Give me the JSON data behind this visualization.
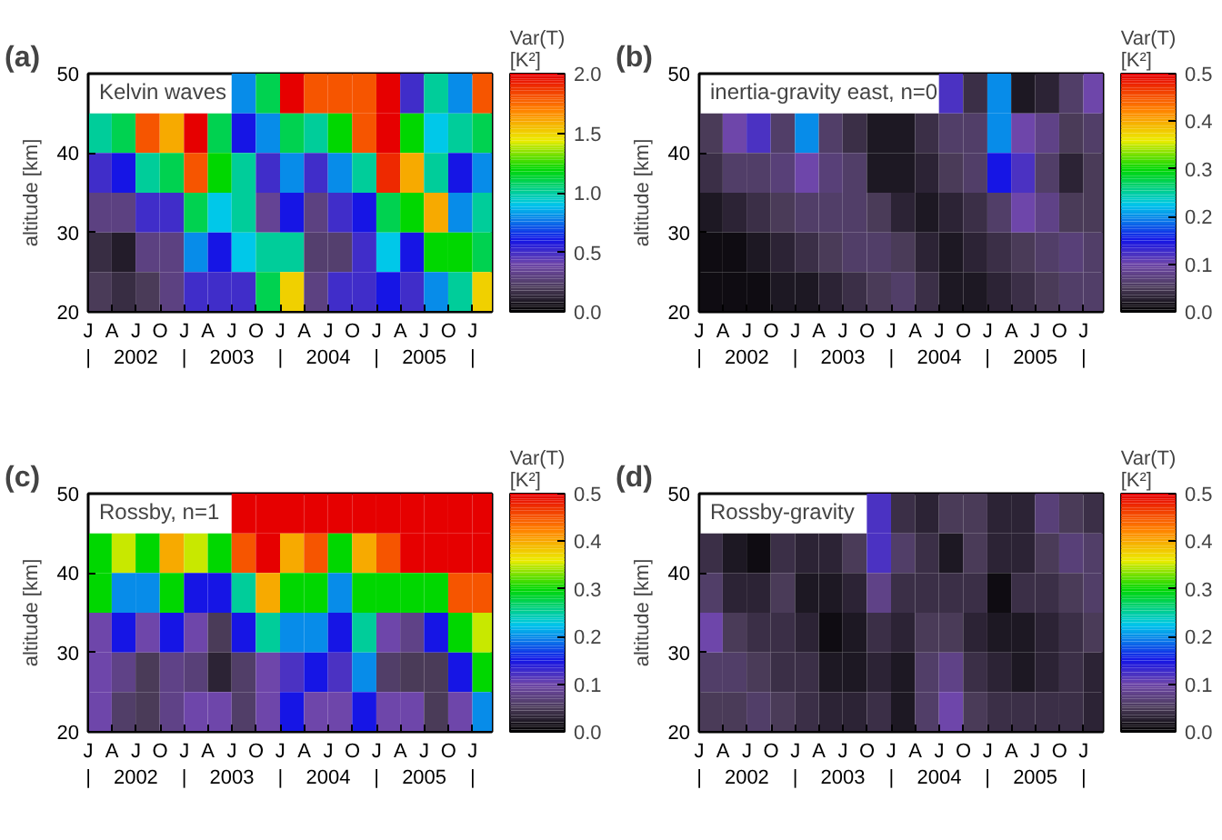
{
  "chart_data": [
    {
      "type": "heatmap",
      "title": "Kelvin waves",
      "annotations": [
        "(a)"
      ],
      "ylabel": "altitude [km]",
      "clabel": "Var(T) [K²]",
      "clim": [
        0,
        2
      ],
      "cticks": [
        {
          "value": 0,
          "label": "0.0"
        },
        0.5,
        {
          "value": 1,
          "label": "1.0"
        },
        1.5,
        {
          "value": 2,
          "label": "2.0"
        }
      ],
      "x": [
        "2002-02-15",
        "2002-05-15",
        "2002-08-15",
        "2002-11-15",
        "2003-02-15",
        "2003-05-15",
        "2003-08-15",
        "2003-11-15",
        "2004-02-15",
        "2004-05-15",
        "2004-08-15",
        "2004-11-15",
        "2005-02-15",
        "2005-05-15",
        "2005-08-15",
        "2005-11-15",
        "2006-02-15"
      ],
      "xlim": [
        "2002-01-01",
        "2006-03-15"
      ],
      "xticks": [
        {
          "value": "2002-01-01",
          "label": "J\n|"
        },
        {
          "value": "2002-04-01",
          "label": "A"
        },
        {
          "value": "2002-07-01",
          "label": "J\n2002"
        },
        {
          "value": "2002-10-01",
          "label": "O"
        },
        {
          "value": "2003-01-01",
          "label": "J\n|"
        },
        {
          "value": "2003-04-01",
          "label": "A"
        },
        {
          "value": "2003-07-01",
          "label": "J\n2003"
        },
        {
          "value": "2003-10-01",
          "label": "O"
        },
        {
          "value": "2004-01-01",
          "label": "J\n|"
        },
        {
          "value": "2004-04-01",
          "label": "A"
        },
        {
          "value": "2004-07-01",
          "label": "J\n2004"
        },
        {
          "value": "2004-10-01",
          "label": "O"
        },
        {
          "value": "2005-01-01",
          "label": "J\n|"
        },
        {
          "value": "2005-04-01",
          "label": "A"
        },
        {
          "value": "2005-07-01",
          "label": "J\n2005"
        },
        {
          "value": "2005-10-01",
          "label": "O"
        },
        {
          "value": "2006-01-01",
          "label": "J\n|"
        }
      ],
      "ylim": [
        20,
        50
      ],
      "yticks": [
        20,
        30,
        40,
        50
      ],
      "cells": [
        [
          null,
          null,
          null,
          null,
          null,
          null,
          0.8,
          1.1,
          2.0,
          1.8,
          1.8,
          1.8,
          2.0,
          0.5,
          1.0,
          0.8,
          1.8
        ],
        [
          1.0,
          1.1,
          1.8,
          1.6,
          2.0,
          1.1,
          0.6,
          0.8,
          1.1,
          1.0,
          1.2,
          1.8,
          2.0,
          1.2,
          0.9,
          1.0,
          1.1
        ],
        [
          0.5,
          0.6,
          1.0,
          1.1,
          1.8,
          1.2,
          1.0,
          0.5,
          0.8,
          0.5,
          0.8,
          1.0,
          1.9,
          1.6,
          1.0,
          0.6,
          0.8
        ],
        [
          0.3,
          0.3,
          0.5,
          0.5,
          1.1,
          0.9,
          1.0,
          0.35,
          0.6,
          0.3,
          0.5,
          0.6,
          1.1,
          1.2,
          1.6,
          0.8,
          1.0
        ],
        [
          0.15,
          0.1,
          0.3,
          0.3,
          0.8,
          0.6,
          0.9,
          1.0,
          1.0,
          0.25,
          0.25,
          0.5,
          0.9,
          0.6,
          1.2,
          1.2,
          1.1
        ],
        [
          0.2,
          0.15,
          0.2,
          0.3,
          0.5,
          0.5,
          0.5,
          1.1,
          1.5,
          0.3,
          0.5,
          0.5,
          0.6,
          0.5,
          0.8,
          1.0,
          1.5
        ]
      ]
    },
    {
      "type": "heatmap",
      "title": "inertia-gravity east, n=0",
      "annotations": [
        "(b)"
      ],
      "ylabel": "altitude [km]",
      "clabel": "Var(T) [K²]",
      "clim": [
        0,
        0.5
      ],
      "cticks": [
        {
          "value": 0,
          "label": "0.0"
        },
        0.1,
        0.2,
        0.3,
        0.4,
        0.5
      ],
      "x": [
        "2002-02-15",
        "2002-05-15",
        "2002-08-15",
        "2002-11-15",
        "2003-02-15",
        "2003-05-15",
        "2003-08-15",
        "2003-11-15",
        "2004-02-15",
        "2004-05-15",
        "2004-08-15",
        "2004-11-15",
        "2005-02-15",
        "2005-05-15",
        "2005-08-15",
        "2005-11-15",
        "2006-02-15"
      ],
      "xlim": [
        "2002-01-01",
        "2006-03-15"
      ],
      "xticks": [
        {
          "value": "2002-01-01",
          "label": "J\n|"
        },
        {
          "value": "2002-04-01",
          "label": "A"
        },
        {
          "value": "2002-07-01",
          "label": "J\n2002"
        },
        {
          "value": "2002-10-01",
          "label": "O"
        },
        {
          "value": "2003-01-01",
          "label": "J\n|"
        },
        {
          "value": "2003-04-01",
          "label": "A"
        },
        {
          "value": "2003-07-01",
          "label": "J\n2003"
        },
        {
          "value": "2003-10-01",
          "label": "O"
        },
        {
          "value": "2004-01-01",
          "label": "J\n|"
        },
        {
          "value": "2004-04-01",
          "label": "A"
        },
        {
          "value": "2004-07-01",
          "label": "J\n2004"
        },
        {
          "value": "2004-10-01",
          "label": "O"
        },
        {
          "value": "2005-01-01",
          "label": "J\n|"
        },
        {
          "value": "2005-04-01",
          "label": "A"
        },
        {
          "value": "2005-07-01",
          "label": "J\n2005"
        },
        {
          "value": "2005-10-01",
          "label": "O"
        },
        {
          "value": "2006-01-01",
          "label": "J\n|"
        }
      ],
      "ylim": [
        20,
        50
      ],
      "yticks": [
        20,
        30,
        40,
        50
      ],
      "cells": [
        [
          null,
          null,
          null,
          null,
          null,
          null,
          null,
          null,
          null,
          null,
          0.12,
          0.04,
          0.2,
          0.02,
          0.03,
          0.06,
          0.1
        ],
        [
          0.05,
          0.1,
          0.12,
          0.06,
          0.2,
          0.06,
          0.04,
          0.02,
          0.02,
          0.04,
          0.06,
          0.06,
          0.2,
          0.1,
          0.08,
          0.05,
          0.06
        ],
        [
          0.04,
          0.06,
          0.06,
          0.07,
          0.1,
          0.07,
          0.06,
          0.02,
          0.02,
          0.03,
          0.05,
          0.06,
          0.15,
          0.12,
          0.06,
          0.03,
          0.05
        ],
        [
          0.02,
          0.03,
          0.04,
          0.05,
          0.06,
          0.06,
          0.06,
          0.05,
          0.03,
          0.02,
          0.03,
          0.04,
          0.06,
          0.1,
          0.08,
          0.05,
          0.05
        ],
        [
          0.01,
          0.01,
          0.02,
          0.03,
          0.04,
          0.05,
          0.06,
          0.06,
          0.05,
          0.03,
          0.02,
          0.03,
          0.04,
          0.05,
          0.06,
          0.07,
          0.06
        ],
        [
          0.01,
          0.01,
          0.01,
          0.02,
          0.02,
          0.03,
          0.04,
          0.05,
          0.06,
          0.04,
          0.02,
          0.02,
          0.03,
          0.04,
          0.05,
          0.06,
          0.06
        ]
      ]
    },
    {
      "type": "heatmap",
      "title": "Rossby, n=1",
      "annotations": [
        "(c)"
      ],
      "ylabel": "altitude [km]",
      "clabel": "Var(T) [K²]",
      "clim": [
        0,
        0.5
      ],
      "cticks": [
        {
          "value": 0,
          "label": "0.0"
        },
        0.1,
        0.2,
        0.3,
        0.4,
        0.5
      ],
      "x": [
        "2002-02-15",
        "2002-05-15",
        "2002-08-15",
        "2002-11-15",
        "2003-02-15",
        "2003-05-15",
        "2003-08-15",
        "2003-11-15",
        "2004-02-15",
        "2004-05-15",
        "2004-08-15",
        "2004-11-15",
        "2005-02-15",
        "2005-05-15",
        "2005-08-15",
        "2005-11-15",
        "2006-02-15"
      ],
      "xlim": [
        "2002-01-01",
        "2006-03-15"
      ],
      "xticks": [
        {
          "value": "2002-01-01",
          "label": "J\n|"
        },
        {
          "value": "2002-04-01",
          "label": "A"
        },
        {
          "value": "2002-07-01",
          "label": "J\n2002"
        },
        {
          "value": "2002-10-01",
          "label": "O"
        },
        {
          "value": "2003-01-01",
          "label": "J\n|"
        },
        {
          "value": "2003-04-01",
          "label": "A"
        },
        {
          "value": "2003-07-01",
          "label": "J\n2003"
        },
        {
          "value": "2003-10-01",
          "label": "O"
        },
        {
          "value": "2004-01-01",
          "label": "J\n|"
        },
        {
          "value": "2004-04-01",
          "label": "A"
        },
        {
          "value": "2004-07-01",
          "label": "J\n2004"
        },
        {
          "value": "2004-10-01",
          "label": "O"
        },
        {
          "value": "2005-01-01",
          "label": "J\n|"
        },
        {
          "value": "2005-04-01",
          "label": "A"
        },
        {
          "value": "2005-07-01",
          "label": "J\n2005"
        },
        {
          "value": "2005-10-01",
          "label": "O"
        },
        {
          "value": "2006-01-01",
          "label": "J\n|"
        }
      ],
      "ylim": [
        20,
        50
      ],
      "yticks": [
        20,
        30,
        40,
        50
      ],
      "cells": [
        [
          null,
          null,
          null,
          null,
          null,
          null,
          0.5,
          0.5,
          0.5,
          0.5,
          0.5,
          0.5,
          0.5,
          0.5,
          0.5,
          0.5,
          0.5
        ],
        [
          0.3,
          0.35,
          0.3,
          0.4,
          0.35,
          0.3,
          0.45,
          0.5,
          0.4,
          0.45,
          0.3,
          0.4,
          0.45,
          0.5,
          0.5,
          0.5,
          0.5
        ],
        [
          0.3,
          0.2,
          0.2,
          0.3,
          0.15,
          0.15,
          0.25,
          0.4,
          0.3,
          0.3,
          0.2,
          0.3,
          0.3,
          0.3,
          0.3,
          0.45,
          0.45
        ],
        [
          0.1,
          0.15,
          0.1,
          0.15,
          0.1,
          0.05,
          0.15,
          0.25,
          0.2,
          0.2,
          0.15,
          0.25,
          0.1,
          0.08,
          0.15,
          0.3,
          0.35
        ],
        [
          0.1,
          0.08,
          0.05,
          0.08,
          0.07,
          0.03,
          0.06,
          0.1,
          0.12,
          0.15,
          0.12,
          0.2,
          0.06,
          0.05,
          0.05,
          0.15,
          0.3
        ],
        [
          0.1,
          0.06,
          0.05,
          0.08,
          0.1,
          0.1,
          0.06,
          0.1,
          0.15,
          0.1,
          0.1,
          0.15,
          0.1,
          0.1,
          0.05,
          0.1,
          0.2
        ]
      ]
    },
    {
      "type": "heatmap",
      "title": "Rossby-gravity",
      "annotations": [
        "(d)"
      ],
      "ylabel": "altitude [km]",
      "clabel": "Var(T) [K²]",
      "clim": [
        0,
        0.5
      ],
      "cticks": [
        {
          "value": 0,
          "label": "0.0"
        },
        0.1,
        0.2,
        0.3,
        0.4,
        0.5
      ],
      "x": [
        "2002-02-15",
        "2002-05-15",
        "2002-08-15",
        "2002-11-15",
        "2003-02-15",
        "2003-05-15",
        "2003-08-15",
        "2003-11-15",
        "2004-02-15",
        "2004-05-15",
        "2004-08-15",
        "2004-11-15",
        "2005-02-15",
        "2005-05-15",
        "2005-08-15",
        "2005-11-15",
        "2006-02-15"
      ],
      "xlim": [
        "2002-01-01",
        "2006-03-15"
      ],
      "xticks": [
        {
          "value": "2002-01-01",
          "label": "J\n|"
        },
        {
          "value": "2002-04-01",
          "label": "A"
        },
        {
          "value": "2002-07-01",
          "label": "J\n2002"
        },
        {
          "value": "2002-10-01",
          "label": "O"
        },
        {
          "value": "2003-01-01",
          "label": "J\n|"
        },
        {
          "value": "2003-04-01",
          "label": "A"
        },
        {
          "value": "2003-07-01",
          "label": "J\n2003"
        },
        {
          "value": "2003-10-01",
          "label": "O"
        },
        {
          "value": "2004-01-01",
          "label": "J\n|"
        },
        {
          "value": "2004-04-01",
          "label": "A"
        },
        {
          "value": "2004-07-01",
          "label": "J\n2004"
        },
        {
          "value": "2004-10-01",
          "label": "O"
        },
        {
          "value": "2005-01-01",
          "label": "J\n|"
        },
        {
          "value": "2005-04-01",
          "label": "A"
        },
        {
          "value": "2005-07-01",
          "label": "J\n2005"
        },
        {
          "value": "2005-10-01",
          "label": "O"
        },
        {
          "value": "2006-01-01",
          "label": "J\n|"
        }
      ],
      "ylim": [
        20,
        50
      ],
      "yticks": [
        20,
        30,
        40,
        50
      ],
      "cells": [
        [
          null,
          null,
          null,
          null,
          null,
          null,
          null,
          0.12,
          0.04,
          0.03,
          0.05,
          0.05,
          0.03,
          0.03,
          0.07,
          0.05,
          0.04
        ],
        [
          0.04,
          0.02,
          0.01,
          0.04,
          0.03,
          0.03,
          0.05,
          0.12,
          0.06,
          0.04,
          0.02,
          0.05,
          0.03,
          0.03,
          0.05,
          0.07,
          0.06
        ],
        [
          0.06,
          0.03,
          0.03,
          0.05,
          0.02,
          0.02,
          0.03,
          0.08,
          0.04,
          0.04,
          0.04,
          0.04,
          0.01,
          0.04,
          0.04,
          0.05,
          0.06
        ],
        [
          0.1,
          0.05,
          0.04,
          0.04,
          0.03,
          0.01,
          0.02,
          0.04,
          0.03,
          0.05,
          0.05,
          0.03,
          0.02,
          0.02,
          0.03,
          0.04,
          0.05
        ],
        [
          0.06,
          0.06,
          0.05,
          0.04,
          0.04,
          0.02,
          0.02,
          0.03,
          0.02,
          0.06,
          0.08,
          0.04,
          0.03,
          0.02,
          0.03,
          0.04,
          0.03
        ],
        [
          0.05,
          0.05,
          0.06,
          0.05,
          0.04,
          0.03,
          0.03,
          0.04,
          0.02,
          0.06,
          0.1,
          0.05,
          0.04,
          0.04,
          0.04,
          0.04,
          0.03
        ]
      ]
    }
  ]
}
